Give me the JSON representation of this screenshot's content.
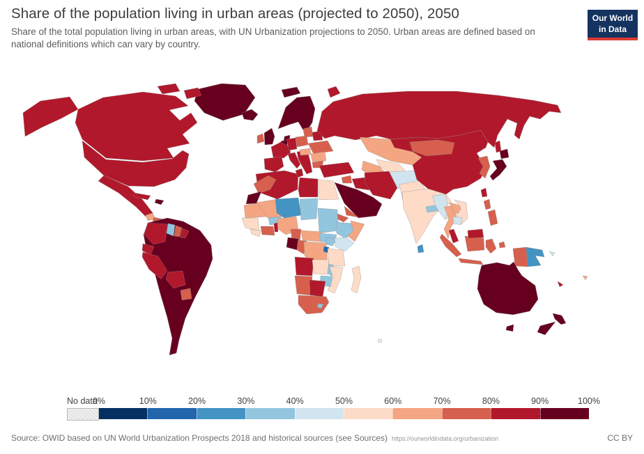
{
  "header": {
    "title": "Share of the population living in urban areas (projected to 2050), 2050",
    "subtitle": "Share of the total population living in urban areas, with UN Urbanization projections to 2050. Urban areas are defined based on national definitions which can vary by country.",
    "logo": {
      "line1": "Our World",
      "line2": "in Data",
      "bg_color": "#15335f",
      "stripe_color": "#dc3b32"
    }
  },
  "legend": {
    "no_data_label": "No data",
    "no_data_color": "#ececec",
    "ticks": [
      "0%",
      "10%",
      "20%",
      "30%",
      "40%",
      "50%",
      "60%",
      "70%",
      "80%",
      "90%",
      "100%"
    ],
    "colors": [
      "#053061",
      "#2166ac",
      "#4393c3",
      "#92c5de",
      "#d1e5f0",
      "#fddbc7",
      "#f4a582",
      "#d6604d",
      "#b2182b",
      "#67001f"
    ]
  },
  "footer": {
    "source": "Source: OWID based on UN World Urbanization Prospects 2018 and historical sources (see Sources)",
    "link": "https://ourworldindata.org/urbanization",
    "license": "CC BY"
  },
  "chart_data": {
    "type": "choropleth",
    "title": "Share of the population living in urban areas (projected to 2050), 2050",
    "unit": "% of total population living in urban areas",
    "year": 2050,
    "legend_position": "bottom",
    "scale_buckets": [
      {
        "range": "0-10%",
        "color": "#053061"
      },
      {
        "range": "10-20%",
        "color": "#2166ac"
      },
      {
        "range": "20-30%",
        "color": "#4393c3"
      },
      {
        "range": "30-40%",
        "color": "#92c5de"
      },
      {
        "range": "40-50%",
        "color": "#d1e5f0"
      },
      {
        "range": "50-60%",
        "color": "#fddbc7"
      },
      {
        "range": "60-70%",
        "color": "#f4a582"
      },
      {
        "range": "70-80%",
        "color": "#d6604d"
      },
      {
        "range": "80-90%",
        "color": "#b2182b"
      },
      {
        "range": "90-100%",
        "color": "#67001f"
      },
      {
        "range": "No data",
        "color": "#ececec"
      }
    ],
    "regions": [
      {
        "id": "greenland",
        "name": "Greenland",
        "range": "90-100%",
        "color": "#67001f"
      },
      {
        "id": "canada",
        "name": "Canada",
        "range": "80-90%",
        "color": "#b2182b"
      },
      {
        "id": "usa",
        "name": "United States",
        "range": "80-90%",
        "color": "#b2182b"
      },
      {
        "id": "mexico",
        "name": "Mexico",
        "range": "80-90%",
        "color": "#b2182b"
      },
      {
        "id": "guatemala",
        "name": "Guatemala",
        "range": "60-70%",
        "color": "#f4a582"
      },
      {
        "id": "honduras-nicaragua",
        "name": "Honduras & Nicaragua",
        "range": "70-80%",
        "color": "#d6604d"
      },
      {
        "id": "costa-rica",
        "name": "Costa Rica",
        "range": "80-90%",
        "color": "#b2182b"
      },
      {
        "id": "panama",
        "name": "Panama",
        "range": "90-100%",
        "color": "#67001f"
      },
      {
        "id": "cuba",
        "name": "Cuba",
        "range": "80-90%",
        "color": "#b2182b"
      },
      {
        "id": "hispaniola",
        "name": "Haiti & Dominican Republic",
        "range": "90-100%",
        "color": "#67001f"
      },
      {
        "id": "south-america-dark",
        "name": "Brazil, Venezuela, Argentina, Chile & Uruguay",
        "range": "90-100%",
        "color": "#67001f"
      },
      {
        "id": "colombia",
        "name": "Colombia",
        "range": "80-90%",
        "color": "#b2182b"
      },
      {
        "id": "ecuador",
        "name": "Ecuador",
        "range": "80-90%",
        "color": "#b2182b"
      },
      {
        "id": "peru",
        "name": "Peru",
        "range": "80-90%",
        "color": "#b2182b"
      },
      {
        "id": "bolivia",
        "name": "Bolivia",
        "range": "80-90%",
        "color": "#b2182b"
      },
      {
        "id": "paraguay",
        "name": "Paraguay",
        "range": "70-80%",
        "color": "#d6604d"
      },
      {
        "id": "guyana",
        "name": "Guyana",
        "range": "30-40%",
        "color": "#92c5de"
      },
      {
        "id": "suriname",
        "name": "Suriname",
        "range": "70-80%",
        "color": "#d6604d"
      },
      {
        "id": "french-guiana",
        "name": "French Guiana",
        "range": "80-90%",
        "color": "#b2182b"
      },
      {
        "id": "iceland",
        "name": "Iceland",
        "range": "90-100%",
        "color": "#67001f"
      },
      {
        "id": "uk",
        "name": "United Kingdom",
        "range": "90-100%",
        "color": "#67001f"
      },
      {
        "id": "ireland",
        "name": "Ireland",
        "range": "70-80%",
        "color": "#d6604d"
      },
      {
        "id": "scandinavia",
        "name": "Norway, Sweden & Finland",
        "range": "90-100%",
        "color": "#67001f"
      },
      {
        "id": "denmark",
        "name": "Denmark",
        "range": "90-100%",
        "color": "#67001f"
      },
      {
        "id": "benelux",
        "name": "Netherlands & Belgium",
        "range": "90-100%",
        "color": "#67001f"
      },
      {
        "id": "france",
        "name": "France",
        "range": "80-90%",
        "color": "#b2182b"
      },
      {
        "id": "iberia",
        "name": "Spain & Portugal",
        "range": "80-90%",
        "color": "#b2182b"
      },
      {
        "id": "germany",
        "name": "Germany",
        "range": "80-90%",
        "color": "#b2182b"
      },
      {
        "id": "italy",
        "name": "Italy",
        "range": "80-90%",
        "color": "#b2182b"
      },
      {
        "id": "balkans",
        "name": "Balkans & Greece",
        "range": "80-90%",
        "color": "#b2182b"
      },
      {
        "id": "poland",
        "name": "Poland",
        "range": "70-80%",
        "color": "#d6604d"
      },
      {
        "id": "baltics",
        "name": "Baltic states",
        "range": "70-80%",
        "color": "#d6604d"
      },
      {
        "id": "belarus",
        "name": "Belarus",
        "range": "80-90%",
        "color": "#b2182b"
      },
      {
        "id": "ukraine",
        "name": "Ukraine",
        "range": "70-80%",
        "color": "#d6604d"
      },
      {
        "id": "romania",
        "name": "Romania",
        "range": "60-70%",
        "color": "#f4a582"
      },
      {
        "id": "hungary",
        "name": "Hungary",
        "range": "60-70%",
        "color": "#f4a582"
      },
      {
        "id": "bulgaria",
        "name": "Bulgaria",
        "range": "70-80%",
        "color": "#d6604d"
      },
      {
        "id": "russia",
        "name": "Russia",
        "range": "80-90%",
        "color": "#b2182b"
      },
      {
        "id": "kazakhstan",
        "name": "Kazakhstan",
        "range": "60-70%",
        "color": "#f4a582"
      },
      {
        "id": "uzbekistan",
        "name": "Uzbekistan",
        "range": "50-60%",
        "color": "#fddbc7"
      },
      {
        "id": "turkmenistan",
        "name": "Turkmenistan",
        "range": "60-70%",
        "color": "#f4a582"
      },
      {
        "id": "kyrgyzstan",
        "name": "Kyrgyzstan",
        "range": "40-50%",
        "color": "#d1e5f0"
      },
      {
        "id": "tajikistan",
        "name": "Tajikistan",
        "range": "40-50%",
        "color": "#d1e5f0"
      },
      {
        "id": "afghanistan",
        "name": "Afghanistan",
        "range": "40-50%",
        "color": "#d1e5f0"
      },
      {
        "id": "pakistan",
        "name": "Pakistan",
        "range": "50-60%",
        "color": "#fddbc7"
      },
      {
        "id": "india",
        "name": "India",
        "range": "50-60%",
        "color": "#fddbc7"
      },
      {
        "id": "nepal",
        "name": "Nepal",
        "range": "30-40%",
        "color": "#92c5de"
      },
      {
        "id": "bangladesh",
        "name": "Bangladesh",
        "range": "50-60%",
        "color": "#fddbc7"
      },
      {
        "id": "sri-lanka",
        "name": "Sri Lanka",
        "range": "20-30%",
        "color": "#4393c3"
      },
      {
        "id": "turkey",
        "name": "Turkey",
        "range": "80-90%",
        "color": "#b2182b"
      },
      {
        "id": "syria",
        "name": "Syria",
        "range": "70-80%",
        "color": "#d6604d"
      },
      {
        "id": "iraq",
        "name": "Iraq",
        "range": "80-90%",
        "color": "#b2182b"
      },
      {
        "id": "iran",
        "name": "Iran",
        "range": "80-90%",
        "color": "#b2182b"
      },
      {
        "id": "arabia",
        "name": "Saudi Arabia, Oman & Gulf states",
        "range": "90-100%",
        "color": "#67001f"
      },
      {
        "id": "yemen",
        "name": "Yemen",
        "range": "70-80%",
        "color": "#d6604d"
      },
      {
        "id": "china",
        "name": "China",
        "range": "80-90%",
        "color": "#b2182b"
      },
      {
        "id": "mongolia",
        "name": "Mongolia",
        "range": "70-80%",
        "color": "#d6604d"
      },
      {
        "id": "korea",
        "name": "North & South Korea",
        "range": "70-80%",
        "color": "#d6604d"
      },
      {
        "id": "japan",
        "name": "Japan",
        "range": "90-100%",
        "color": "#67001f"
      },
      {
        "id": "taiwan",
        "name": "Taiwan",
        "range": "80-90%",
        "color": "#b2182b"
      },
      {
        "id": "myanmar",
        "name": "Myanmar",
        "range": "40-50%",
        "color": "#d1e5f0"
      },
      {
        "id": "thailand",
        "name": "Thailand",
        "range": "60-70%",
        "color": "#f4a582"
      },
      {
        "id": "laos",
        "name": "Laos",
        "range": "60-70%",
        "color": "#f4a582"
      },
      {
        "id": "vietnam",
        "name": "Vietnam",
        "range": "50-60%",
        "color": "#fddbc7"
      },
      {
        "id": "cambodia",
        "name": "Cambodia",
        "range": "40-50%",
        "color": "#d1e5f0"
      },
      {
        "id": "malaysia",
        "name": "Malaysia",
        "range": "80-90%",
        "color": "#b2182b"
      },
      {
        "id": "indonesia",
        "name": "Indonesia",
        "range": "70-80%",
        "color": "#d6604d"
      },
      {
        "id": "philippines",
        "name": "Philippines",
        "range": "70-80%",
        "color": "#d6604d"
      },
      {
        "id": "png",
        "name": "Papua New Guinea",
        "range": "20-30%",
        "color": "#4393c3"
      },
      {
        "id": "solomons",
        "name": "Solomon Islands",
        "range": "40-50%",
        "color": "#d1e5f0"
      },
      {
        "id": "fiji",
        "name": "Fiji",
        "range": "60-70%",
        "color": "#f4a582"
      },
      {
        "id": "new-caledonia",
        "name": "New Caledonia",
        "range": "80-90%",
        "color": "#b2182b"
      },
      {
        "id": "australia",
        "name": "Australia",
        "range": "90-100%",
        "color": "#67001f"
      },
      {
        "id": "nz",
        "name": "New Zealand",
        "range": "90-100%",
        "color": "#67001f"
      },
      {
        "id": "morocco",
        "name": "Morocco",
        "range": "70-80%",
        "color": "#d6604d"
      },
      {
        "id": "w-sahara",
        "name": "Western Sahara",
        "range": "90-100%",
        "color": "#67001f"
      },
      {
        "id": "algeria",
        "name": "Algeria",
        "range": "80-90%",
        "color": "#b2182b"
      },
      {
        "id": "tunisia",
        "name": "Tunisia",
        "range": "80-90%",
        "color": "#b2182b"
      },
      {
        "id": "libya",
        "name": "Libya",
        "range": "80-90%",
        "color": "#b2182b"
      },
      {
        "id": "egypt",
        "name": "Egypt",
        "range": "50-60%",
        "color": "#fddbc7"
      },
      {
        "id": "mauritania",
        "name": "Mauritania",
        "range": "60-70%",
        "color": "#f4a582"
      },
      {
        "id": "mali",
        "name": "Mali",
        "range": "60-70%",
        "color": "#f4a582"
      },
      {
        "id": "senegal-guinea",
        "name": "Senegal & Guinea",
        "range": "50-60%",
        "color": "#fddbc7"
      },
      {
        "id": "sierra-liberia",
        "name": "Sierra Leone & Liberia",
        "range": "50-60%",
        "color": "#fddbc7"
      },
      {
        "id": "burkina",
        "name": "Burkina Faso",
        "range": "30-40%",
        "color": "#92c5de"
      },
      {
        "id": "ivory-ghana",
        "name": "Côte d'Ivoire & Ghana",
        "range": "70-80%",
        "color": "#d6604d"
      },
      {
        "id": "togo-benin",
        "name": "Togo & Benin",
        "range": "80-90%",
        "color": "#b2182b"
      },
      {
        "id": "niger",
        "name": "Niger",
        "range": "20-30%",
        "color": "#4393c3"
      },
      {
        "id": "nigeria",
        "name": "Nigeria",
        "range": "60-70%",
        "color": "#f4a582"
      },
      {
        "id": "chad",
        "name": "Chad",
        "range": "30-40%",
        "color": "#92c5de"
      },
      {
        "id": "sudan",
        "name": "Sudan",
        "range": "30-40%",
        "color": "#92c5de"
      },
      {
        "id": "eritrea",
        "name": "Eritrea",
        "range": "70-80%",
        "color": "#d6604d"
      },
      {
        "id": "ethiopia",
        "name": "Ethiopia",
        "range": "30-40%",
        "color": "#92c5de"
      },
      {
        "id": "somalia",
        "name": "Somalia",
        "range": "60-70%",
        "color": "#f4a582"
      },
      {
        "id": "cameroon",
        "name": "Cameroon",
        "range": "70-80%",
        "color": "#d6604d"
      },
      {
        "id": "car",
        "name": "Central African Republic",
        "range": "60-70%",
        "color": "#f4a582"
      },
      {
        "id": "s-sudan",
        "name": "South Sudan",
        "range": "30-40%",
        "color": "#92c5de"
      },
      {
        "id": "gabon",
        "name": "Gabon",
        "range": "90-100%",
        "color": "#67001f"
      },
      {
        "id": "congo",
        "name": "Republic of the Congo",
        "range": "70-80%",
        "color": "#d6604d"
      },
      {
        "id": "drc",
        "name": "Democratic Republic of the Congo",
        "range": "60-70%",
        "color": "#f4a582"
      },
      {
        "id": "uganda",
        "name": "Uganda",
        "range": "30-40%",
        "color": "#92c5de"
      },
      {
        "id": "kenya",
        "name": "Kenya",
        "range": "40-50%",
        "color": "#d1e5f0"
      },
      {
        "id": "rwanda-burundi",
        "name": "Rwanda & Burundi",
        "range": "10-20%",
        "color": "#2166ac"
      },
      {
        "id": "tanzania",
        "name": "Tanzania",
        "range": "50-60%",
        "color": "#fddbc7"
      },
      {
        "id": "angola",
        "name": "Angola",
        "range": "80-90%",
        "color": "#b2182b"
      },
      {
        "id": "zambia",
        "name": "Zambia",
        "range": "50-60%",
        "color": "#fddbc7"
      },
      {
        "id": "malawi",
        "name": "Malawi",
        "range": "30-40%",
        "color": "#92c5de"
      },
      {
        "id": "mozambique",
        "name": "Mozambique",
        "range": "50-60%",
        "color": "#fddbc7"
      },
      {
        "id": "zimbabwe",
        "name": "Zimbabwe",
        "range": "30-40%",
        "color": "#92c5de"
      },
      {
        "id": "namibia",
        "name": "Namibia",
        "range": "70-80%",
        "color": "#d6604d"
      },
      {
        "id": "botswana",
        "name": "Botswana",
        "range": "80-90%",
        "color": "#b2182b"
      },
      {
        "id": "south-africa",
        "name": "South Africa",
        "range": "70-80%",
        "color": "#d6604d"
      },
      {
        "id": "lesotho",
        "name": "Lesotho & Eswatini",
        "range": "30-40%",
        "color": "#92c5de"
      },
      {
        "id": "madagascar",
        "name": "Madagascar",
        "range": "50-60%",
        "color": "#fddbc7"
      }
    ]
  }
}
